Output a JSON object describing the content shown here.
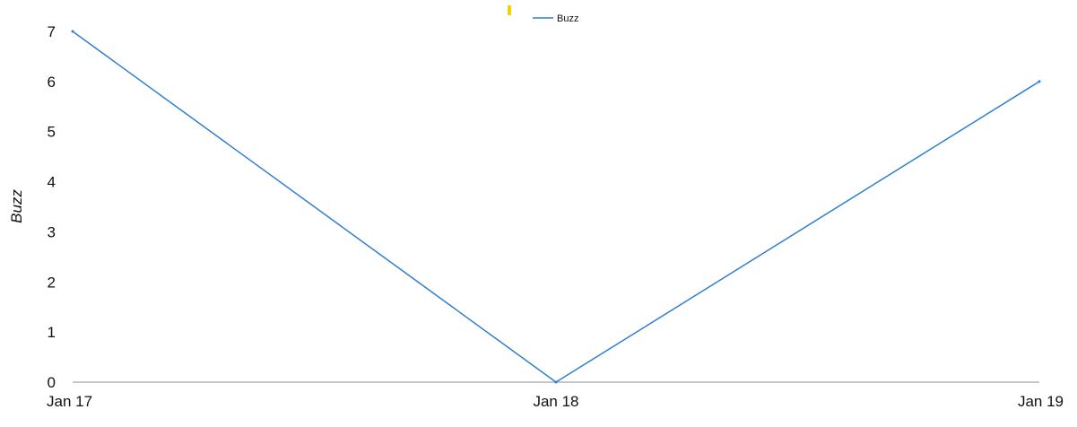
{
  "chart_data": {
    "type": "line",
    "title": "",
    "xlabel": "",
    "ylabel": "Buzz",
    "categories": [
      "Jan 17",
      "Jan 18",
      "Jan 19"
    ],
    "series": [
      {
        "name": "Buzz",
        "values": [
          7,
          0,
          6
        ],
        "color": "#2f7fcf"
      }
    ],
    "ylim": [
      0,
      7
    ],
    "yticks": [
      "0",
      "1",
      "2",
      "3",
      "4",
      "5",
      "6",
      "7"
    ],
    "grid": false,
    "legend_position": "top-center",
    "marker_color": "#f2d200"
  }
}
